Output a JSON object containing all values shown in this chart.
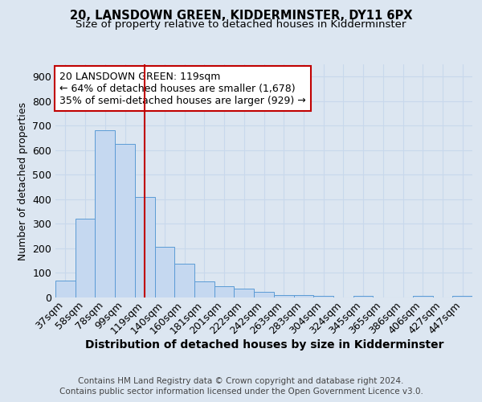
{
  "title": "20, LANSDOWN GREEN, KIDDERMINSTER, DY11 6PX",
  "subtitle": "Size of property relative to detached houses in Kidderminster",
  "xlabel": "Distribution of detached houses by size in Kidderminster",
  "ylabel": "Number of detached properties",
  "footer_line1": "Contains HM Land Registry data © Crown copyright and database right 2024.",
  "footer_line2": "Contains public sector information licensed under the Open Government Licence v3.0.",
  "annotation_line1": "20 LANSDOWN GREEN: 119sqm",
  "annotation_line2": "← 64% of detached houses are smaller (1,678)",
  "annotation_line3": "35% of semi-detached houses are larger (929) →",
  "categories": [
    "37sqm",
    "58sqm",
    "78sqm",
    "99sqm",
    "119sqm",
    "140sqm",
    "160sqm",
    "181sqm",
    "201sqm",
    "222sqm",
    "242sqm",
    "263sqm",
    "283sqm",
    "304sqm",
    "324sqm",
    "345sqm",
    "365sqm",
    "386sqm",
    "406sqm",
    "427sqm",
    "447sqm"
  ],
  "values": [
    70,
    320,
    680,
    625,
    410,
    207,
    138,
    67,
    47,
    35,
    22,
    10,
    10,
    5,
    0,
    5,
    0,
    0,
    5,
    0,
    5
  ],
  "bar_color": "#c5d8f0",
  "bar_edge_color": "#5b9bd5",
  "marker_color": "#c00000",
  "annotation_box_facecolor": "#ffffff",
  "annotation_box_edgecolor": "#c00000",
  "grid_color": "#c8d8ec",
  "background_color": "#dce6f1",
  "ylim": [
    0,
    950
  ],
  "yticks": [
    0,
    100,
    200,
    300,
    400,
    500,
    600,
    700,
    800,
    900
  ],
  "marker_index": 4,
  "title_fontsize": 10.5,
  "subtitle_fontsize": 9.5,
  "xlabel_fontsize": 10,
  "ylabel_fontsize": 9,
  "tick_fontsize": 9,
  "annotation_fontsize": 9,
  "footer_fontsize": 7.5
}
